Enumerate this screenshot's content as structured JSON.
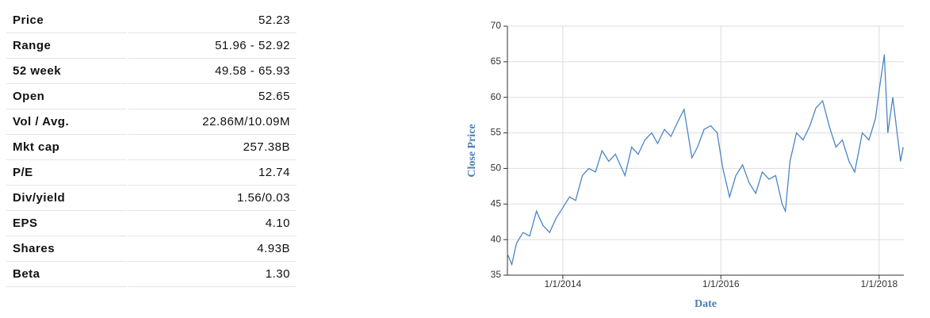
{
  "table": {
    "rows": [
      [
        "Price",
        "52.23"
      ],
      [
        "Range",
        "51.96 - 52.92"
      ],
      [
        "52 week",
        "49.58 - 65.93"
      ],
      [
        "Open",
        "52.65"
      ],
      [
        "Vol / Avg.",
        "22.86M/10.09M"
      ],
      [
        "Mkt cap",
        "257.38B"
      ],
      [
        "P/E",
        "12.74"
      ],
      [
        "Div/yield",
        "1.56/0.03"
      ],
      [
        "EPS",
        "4.10"
      ],
      [
        "Shares",
        "4.93B"
      ],
      [
        "Beta",
        "1.30"
      ]
    ]
  },
  "chart_data": {
    "type": "line",
    "xlabel": "Date",
    "ylabel": "Close Price",
    "color": "#4a86c5",
    "grid": true,
    "x": [
      "2013-04-20",
      "2013-05-10",
      "2013-06-01",
      "2013-07-01",
      "2013-08-01",
      "2013-09-01",
      "2013-10-01",
      "2013-11-01",
      "2013-12-01",
      "2014-01-01",
      "2014-02-01",
      "2014-03-01",
      "2014-04-01",
      "2014-05-01",
      "2014-06-01",
      "2014-07-01",
      "2014-08-01",
      "2014-09-01",
      "2014-10-15",
      "2014-11-15",
      "2014-12-15",
      "2015-01-15",
      "2015-02-15",
      "2015-03-15",
      "2015-04-15",
      "2015-05-15",
      "2015-06-15",
      "2015-07-15",
      "2015-08-20",
      "2015-09-15",
      "2015-10-15",
      "2015-11-15",
      "2015-12-15",
      "2016-01-10",
      "2016-02-10",
      "2016-03-10",
      "2016-04-10",
      "2016-05-10",
      "2016-06-10",
      "2016-07-10",
      "2016-08-10",
      "2016-09-10",
      "2016-10-10",
      "2016-10-25",
      "2016-11-15",
      "2016-12-15",
      "2017-01-15",
      "2017-02-15",
      "2017-03-15",
      "2017-04-15",
      "2017-05-15",
      "2017-06-15",
      "2017-07-15",
      "2017-08-15",
      "2017-09-10",
      "2017-10-15",
      "2017-11-15",
      "2017-12-15",
      "2018-01-01",
      "2018-01-25",
      "2018-02-10",
      "2018-03-05",
      "2018-03-25",
      "2018-04-10",
      "2018-04-22"
    ],
    "values": [
      38,
      36.5,
      39.5,
      41,
      40.5,
      44,
      42,
      41,
      43,
      44.5,
      46,
      45.5,
      49,
      50,
      49.5,
      52.5,
      51,
      52,
      49,
      53,
      52,
      54,
      55,
      53.5,
      55.5,
      54.5,
      56.5,
      58.3,
      51.5,
      53,
      55.5,
      56,
      55,
      50,
      46,
      49,
      50.5,
      48,
      46.5,
      49.5,
      48.5,
      49,
      45,
      44,
      51,
      55,
      54,
      56,
      58.5,
      59.5,
      56,
      53,
      54,
      51,
      49.5,
      55,
      54,
      57,
      61,
      66,
      55,
      60,
      55,
      51,
      53
    ],
    "xlim": [
      "2013-04-20",
      "2018-04-25"
    ],
    "xticks": [
      {
        "value": "2014-01-01",
        "label": "1/1/2014"
      },
      {
        "value": "2016-01-01",
        "label": "1/1/2016"
      },
      {
        "value": "2018-01-01",
        "label": "1/1/2018"
      }
    ],
    "ylim": [
      35,
      70
    ],
    "yticks": [
      35,
      40,
      45,
      50,
      55,
      60,
      65,
      70
    ]
  }
}
